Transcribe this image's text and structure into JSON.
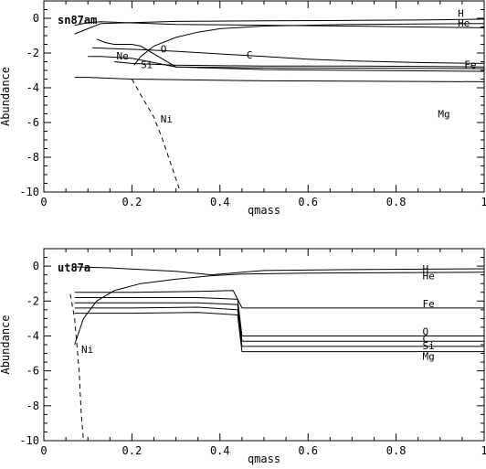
{
  "chart_data": [
    {
      "type": "line",
      "title": "sn87am",
      "xlabel": "qmass",
      "ylabel": "Abundance",
      "xlim": [
        0,
        1
      ],
      "ylim": [
        -10,
        1
      ],
      "xticks": [
        "0",
        "0.2",
        "0.4",
        "0.6",
        "0.8",
        "1"
      ],
      "yticks": [
        "0",
        "-2",
        "-4",
        "-6",
        "-8",
        "-10"
      ],
      "grid": false,
      "series": [
        {
          "name": "H",
          "style": "solid",
          "label_at": [
            0.94,
            0.3
          ],
          "points": [
            [
              0.07,
              -0.9
            ],
            [
              0.1,
              -0.6
            ],
            [
              0.13,
              -0.3
            ],
            [
              0.3,
              -0.18
            ],
            [
              0.5,
              -0.15
            ],
            [
              0.7,
              -0.12
            ],
            [
              0.85,
              -0.1
            ],
            [
              1.0,
              -0.05
            ]
          ]
        },
        {
          "name": "He",
          "style": "solid",
          "label_at": [
            0.94,
            -0.25
          ],
          "points": [
            [
              0.07,
              -0.4
            ],
            [
              0.1,
              -0.25
            ],
            [
              0.13,
              -0.2
            ],
            [
              0.3,
              -0.35
            ],
            [
              0.5,
              -0.4
            ],
            [
              0.7,
              -0.45
            ],
            [
              0.85,
              -0.5
            ],
            [
              1.0,
              -0.55
            ]
          ]
        },
        {
          "name": "C",
          "style": "solid",
          "label_at": [
            0.46,
            -2.1
          ],
          "points": [
            [
              0.11,
              -1.7
            ],
            [
              0.16,
              -1.75
            ],
            [
              0.22,
              -1.8
            ],
            [
              0.3,
              -1.9
            ],
            [
              0.4,
              -2.05
            ],
            [
              0.5,
              -2.2
            ],
            [
              0.6,
              -2.35
            ],
            [
              0.7,
              -2.45
            ],
            [
              0.85,
              -2.55
            ],
            [
              1.0,
              -2.6
            ]
          ]
        },
        {
          "name": "O",
          "style": "solid",
          "label_at": [
            0.265,
            -1.75
          ],
          "points": [
            [
              0.205,
              -2.7
            ],
            [
              0.22,
              -2.2
            ],
            [
              0.25,
              -1.6
            ],
            [
              0.3,
              -1.1
            ],
            [
              0.35,
              -0.8
            ],
            [
              0.4,
              -0.6
            ],
            [
              0.5,
              -0.45
            ],
            [
              0.7,
              -0.35
            ],
            [
              1.0,
              -0.3
            ]
          ]
        },
        {
          "name": "Fe",
          "style": "solid",
          "label_at": [
            0.955,
            -2.65
          ],
          "points": [
            [
              0.16,
              -2.5
            ],
            [
              0.2,
              -2.6
            ],
            [
              0.3,
              -2.7
            ],
            [
              0.5,
              -2.75
            ],
            [
              0.7,
              -2.75
            ],
            [
              0.85,
              -2.77
            ],
            [
              1.0,
              -2.8
            ]
          ]
        },
        {
          "name": "Ne",
          "style": "solid",
          "label_at": [
            0.165,
            -2.15
          ],
          "points": [
            [
              0.12,
              -1.2
            ],
            [
              0.14,
              -1.4
            ],
            [
              0.16,
              -1.5
            ],
            [
              0.2,
              -1.5
            ],
            [
              0.22,
              -1.6
            ],
            [
              0.3,
              -2.8
            ],
            [
              0.5,
              -2.85
            ],
            [
              1.0,
              -2.9
            ]
          ]
        },
        {
          "name": "Si",
          "style": "solid",
          "label_at": [
            0.22,
            -2.65
          ],
          "points": [
            [
              0.1,
              -2.2
            ],
            [
              0.13,
              -2.2
            ],
            [
              0.2,
              -2.3
            ],
            [
              0.3,
              -2.8
            ],
            [
              0.5,
              -2.95
            ],
            [
              1.0,
              -3.05
            ]
          ]
        },
        {
          "name": "Mg",
          "style": "solid",
          "label_at": [
            0.895,
            -5.5
          ],
          "points": [
            [
              0.07,
              -3.4
            ],
            [
              0.1,
              -3.4
            ],
            [
              0.2,
              -3.5
            ],
            [
              0.5,
              -3.6
            ],
            [
              1.0,
              -3.65
            ]
          ]
        },
        {
          "name": "Ni",
          "style": "dashed",
          "label_at": [
            0.265,
            -5.8
          ],
          "points": [
            [
              0.2,
              -3.5
            ],
            [
              0.22,
              -4.4
            ],
            [
              0.25,
              -5.7
            ],
            [
              0.27,
              -7.0
            ],
            [
              0.29,
              -8.5
            ],
            [
              0.31,
              -10
            ]
          ]
        }
      ]
    },
    {
      "type": "line",
      "title": "ut87a",
      "xlabel": "qmass",
      "ylabel": "Abundance",
      "xlim": [
        0,
        1
      ],
      "ylim": [
        -10,
        1
      ],
      "xticks": [
        "0",
        "0.2",
        "0.4",
        "0.6",
        "0.8",
        "1"
      ],
      "yticks": [
        "0",
        "-2",
        "-4",
        "-6",
        "-8",
        "-10"
      ],
      "grid": false,
      "series": [
        {
          "name": "H",
          "style": "solid",
          "label_at": [
            0.86,
            -0.15
          ],
          "points": [
            [
              0.07,
              -0.05
            ],
            [
              0.15,
              -0.1
            ],
            [
              0.3,
              -0.3
            ],
            [
              0.38,
              -0.5
            ],
            [
              0.45,
              -0.35
            ],
            [
              0.5,
              -0.25
            ],
            [
              0.7,
              -0.2
            ],
            [
              1.0,
              -0.15
            ]
          ]
        },
        {
          "name": "He",
          "style": "solid",
          "label_at": [
            0.86,
            -0.55
          ],
          "points": [
            [
              0.07,
              -4.5
            ],
            [
              0.09,
              -3.0
            ],
            [
              0.12,
              -2.0
            ],
            [
              0.16,
              -1.4
            ],
            [
              0.22,
              -1.0
            ],
            [
              0.3,
              -0.75
            ],
            [
              0.38,
              -0.55
            ],
            [
              0.45,
              -0.45
            ],
            [
              0.6,
              -0.4
            ],
            [
              1.0,
              -0.35
            ]
          ]
        },
        {
          "name": "Fe",
          "style": "solid",
          "label_at": [
            0.86,
            -2.15
          ],
          "points": [
            [
              0.07,
              -1.5
            ],
            [
              0.2,
              -1.5
            ],
            [
              0.35,
              -1.45
            ],
            [
              0.43,
              -1.4
            ],
            [
              0.45,
              -2.4
            ],
            [
              0.6,
              -2.4
            ],
            [
              1.0,
              -2.4
            ]
          ]
        },
        {
          "name": "O",
          "style": "solid",
          "label_at": [
            0.86,
            -3.75
          ],
          "points": [
            [
              0.07,
              -1.8
            ],
            [
              0.2,
              -1.8
            ],
            [
              0.35,
              -1.8
            ],
            [
              0.44,
              -1.9
            ],
            [
              0.45,
              -4.0
            ],
            [
              0.6,
              -4.0
            ],
            [
              1.0,
              -4.0
            ]
          ]
        },
        {
          "name": "C",
          "style": "solid",
          "label_at": [
            0.86,
            -4.15
          ],
          "points": [
            [
              0.07,
              -2.1
            ],
            [
              0.2,
              -2.1
            ],
            [
              0.35,
              -2.1
            ],
            [
              0.44,
              -2.2
            ],
            [
              0.45,
              -4.3
            ],
            [
              0.6,
              -4.3
            ],
            [
              1.0,
              -4.3
            ]
          ]
        },
        {
          "name": "Si",
          "style": "solid",
          "label_at": [
            0.86,
            -4.55
          ],
          "points": [
            [
              0.07,
              -2.4
            ],
            [
              0.2,
              -2.4
            ],
            [
              0.35,
              -2.35
            ],
            [
              0.44,
              -2.5
            ],
            [
              0.45,
              -4.6
            ],
            [
              0.6,
              -4.6
            ],
            [
              1.0,
              -4.6
            ]
          ]
        },
        {
          "name": "Mg",
          "style": "solid",
          "label_at": [
            0.86,
            -5.15
          ],
          "points": [
            [
              0.07,
              -2.7
            ],
            [
              0.2,
              -2.7
            ],
            [
              0.35,
              -2.65
            ],
            [
              0.44,
              -2.8
            ],
            [
              0.45,
              -4.9
            ],
            [
              0.6,
              -4.9
            ],
            [
              1.0,
              -4.9
            ]
          ]
        },
        {
          "name": "Ni",
          "style": "dashed",
          "label_at": [
            0.085,
            -4.75
          ],
          "points": [
            [
              0.06,
              -1.6
            ],
            [
              0.07,
              -3.0
            ],
            [
              0.08,
              -6.0
            ],
            [
              0.085,
              -8.5
            ],
            [
              0.09,
              -10
            ]
          ]
        }
      ]
    }
  ]
}
